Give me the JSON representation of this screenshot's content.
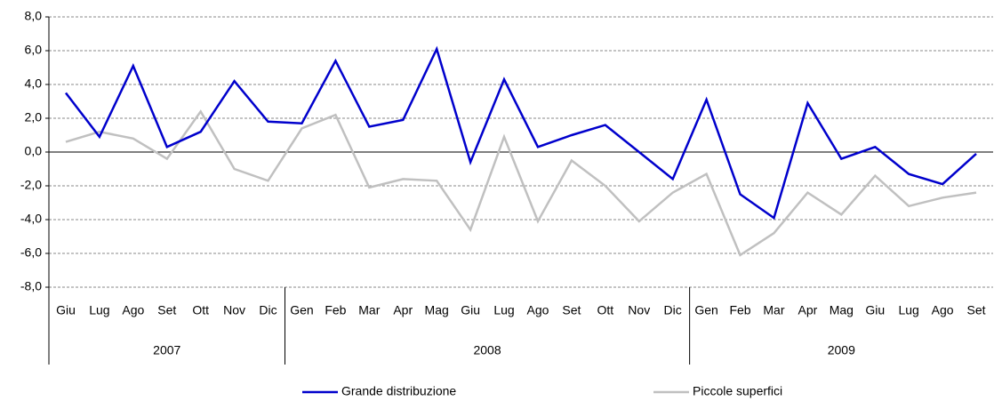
{
  "chart_data": {
    "type": "line",
    "groups": [
      {
        "name": "2007",
        "categories": [
          "Giu",
          "Lug",
          "Ago",
          "Set",
          "Ott",
          "Nov",
          "Dic"
        ]
      },
      {
        "name": "2008",
        "categories": [
          "Gen",
          "Feb",
          "Mar",
          "Apr",
          "Mag",
          "Giu",
          "Lug",
          "Ago",
          "Set",
          "Ott",
          "Nov",
          "Dic"
        ]
      },
      {
        "name": "2009",
        "categories": [
          "Gen",
          "Feb",
          "Mar",
          "Apr",
          "Mag",
          "Giu",
          "Lug",
          "Ago",
          "Set"
        ]
      }
    ],
    "series": [
      {
        "name": "Grande distribuzione",
        "color": "#0000cc",
        "values": [
          3.5,
          0.9,
          5.1,
          0.3,
          1.2,
          4.2,
          1.8,
          1.7,
          5.4,
          1.5,
          1.9,
          6.1,
          -0.6,
          4.3,
          0.3,
          1.0,
          1.6,
          0.0,
          -1.6,
          3.1,
          -2.5,
          -3.9,
          2.9,
          -0.4,
          0.3,
          -1.3,
          -1.9,
          -0.1
        ]
      },
      {
        "name": "Piccole superfici",
        "color": "#c0c0c0",
        "values": [
          0.6,
          1.2,
          0.8,
          -0.4,
          2.4,
          -1.0,
          -1.7,
          1.4,
          2.2,
          -2.1,
          -1.6,
          -1.7,
          -4.6,
          0.9,
          -4.1,
          -0.5,
          -2.0,
          -4.1,
          -2.4,
          -1.3,
          -6.1,
          -4.8,
          -2.4,
          -3.7,
          -1.4,
          -3.2,
          -2.7,
          -2.4
        ]
      }
    ],
    "ylim": [
      -8,
      8
    ],
    "yticks": [
      {
        "value": -8,
        "label": "-8,0"
      },
      {
        "value": -6,
        "label": "-6,0"
      },
      {
        "value": -4,
        "label": "-4,0"
      },
      {
        "value": -2,
        "label": "-2,0"
      },
      {
        "value": 0,
        "label": "0,0"
      },
      {
        "value": 2,
        "label": "2,0"
      },
      {
        "value": 4,
        "label": "4,0"
      },
      {
        "value": 6,
        "label": "6,0"
      },
      {
        "value": 8,
        "label": "8,0"
      }
    ],
    "grid": true,
    "legend": "bottom"
  }
}
